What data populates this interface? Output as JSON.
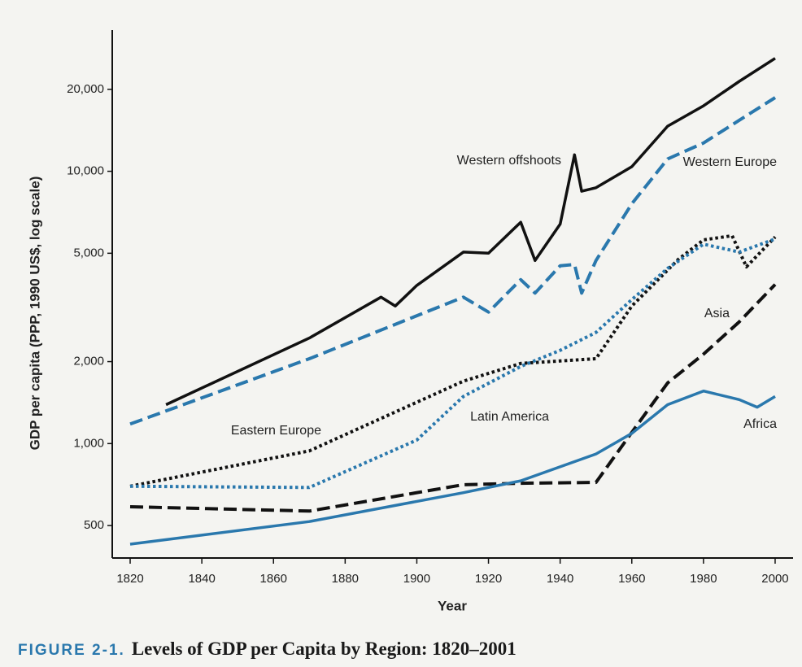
{
  "chart_data": {
    "type": "line",
    "log_y": true,
    "y_label": "GDP per capita (PPP, 1990 US$, log scale)",
    "x_label": "Year",
    "caption": {
      "figure": "FIGURE 2-1.",
      "title": "Levels of GDP per Capita by Region: 1820–2001"
    },
    "xlim": [
      1815,
      2005
    ],
    "xticks": [
      1820,
      1840,
      1860,
      1880,
      1900,
      1920,
      1940,
      1960,
      1980,
      2000
    ],
    "ylim": [
      380,
      33000
    ],
    "yticks": [
      500,
      {
        "value": 1000,
        "label": "1,000"
      },
      {
        "value": 2000,
        "label": "2,000"
      },
      {
        "value": 5000,
        "label": "5,000"
      },
      {
        "value": 10000,
        "label": "10,000"
      },
      {
        "value": 20000,
        "label": "20,000"
      }
    ],
    "series": [
      {
        "name": "Western offshoots",
        "color": "#111111",
        "style": "solid",
        "x": [
          1830,
          1870,
          1890,
          1894,
          1900,
          1913,
          1920,
          1929,
          1933,
          1940,
          1944,
          1946,
          1950,
          1960,
          1970,
          1980,
          1990,
          2000
        ],
        "values": [
          1390,
          2440,
          3450,
          3200,
          3810,
          5050,
          5000,
          6500,
          4700,
          6400,
          11500,
          8450,
          8700,
          10400,
          14650,
          17400,
          21400,
          26000
        ]
      },
      {
        "name": "Western Europe",
        "color": "#2a78ad",
        "style": "dashed",
        "x": [
          1820,
          1870,
          1913,
          1920,
          1929,
          1933,
          1940,
          1944,
          1946,
          1950,
          1960,
          1970,
          1980,
          1990,
          2000
        ],
        "values": [
          1180,
          2050,
          3450,
          3040,
          4000,
          3570,
          4500,
          4550,
          3570,
          4700,
          7600,
          11100,
          12700,
          15400,
          18650
        ]
      },
      {
        "name": "Eastern Europe",
        "color": "#111111",
        "style": "dotted",
        "x": [
          1820,
          1870,
          1913,
          1929,
          1950,
          1960,
          1973,
          1980,
          1988,
          1992,
          2000
        ],
        "values": [
          697,
          940,
          1695,
          1970,
          2050,
          3200,
          4750,
          5600,
          5800,
          4460,
          5740
        ]
      },
      {
        "name": "Latin America",
        "color": "#2a78ad",
        "style": "dotted",
        "x": [
          1820,
          1870,
          1900,
          1913,
          1929,
          1940,
          1950,
          1960,
          1970,
          1980,
          1990,
          2000
        ],
        "values": [
          697,
          690,
          1030,
          1490,
          1920,
          2200,
          2560,
          3380,
          4400,
          5400,
          5050,
          5640
        ]
      },
      {
        "name": "Asia",
        "color": "#111111",
        "style": "dashed",
        "x": [
          1820,
          1870,
          1913,
          1929,
          1950,
          1960,
          1970,
          1980,
          1990,
          2000
        ],
        "values": [
          586,
          565,
          706,
          715,
          720,
          1100,
          1670,
          2130,
          2800,
          3840
        ]
      },
      {
        "name": "Africa",
        "color": "#2a78ad",
        "style": "solid",
        "x": [
          1820,
          1870,
          1913,
          1929,
          1950,
          1960,
          1970,
          1980,
          1990,
          1995,
          2000
        ],
        "values": [
          427,
          517,
          660,
          730,
          916,
          1090,
          1390,
          1560,
          1450,
          1360,
          1490
        ]
      }
    ]
  }
}
